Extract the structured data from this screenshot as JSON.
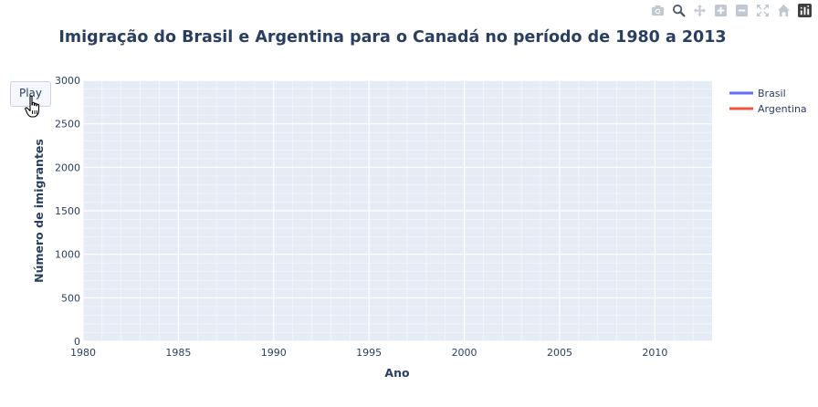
{
  "modebar": {
    "icons": [
      "camera-icon",
      "zoom-icon",
      "pan-icon",
      "zoom-in-icon",
      "zoom-out-icon",
      "autoscale-icon",
      "home-icon",
      "plotly-logo-icon"
    ]
  },
  "controls": {
    "play_label": "Play"
  },
  "colors": {
    "plot_bg": "#e5ecf6",
    "grid": "#ffffff",
    "text": "#2a3f5f"
  },
  "chart_data": {
    "type": "line",
    "title": "Imigração do Brasil e Argentina para o Canadá no período de 1980 a 2013",
    "xlabel": "Ano",
    "ylabel": "Número de imigrantes",
    "xlim": [
      1980,
      2013
    ],
    "ylim": [
      0,
      3000
    ],
    "xticks": [
      1980,
      1985,
      1990,
      1995,
      2000,
      2005,
      2010
    ],
    "yticks": [
      0,
      500,
      1000,
      1500,
      2000,
      2500,
      3000
    ],
    "grid": true,
    "legend_position": "top-right",
    "series": [
      {
        "name": "Brasil",
        "color": "#636efa",
        "x": [],
        "y": []
      },
      {
        "name": "Argentina",
        "color": "#ef553b",
        "x": [],
        "y": []
      }
    ]
  }
}
